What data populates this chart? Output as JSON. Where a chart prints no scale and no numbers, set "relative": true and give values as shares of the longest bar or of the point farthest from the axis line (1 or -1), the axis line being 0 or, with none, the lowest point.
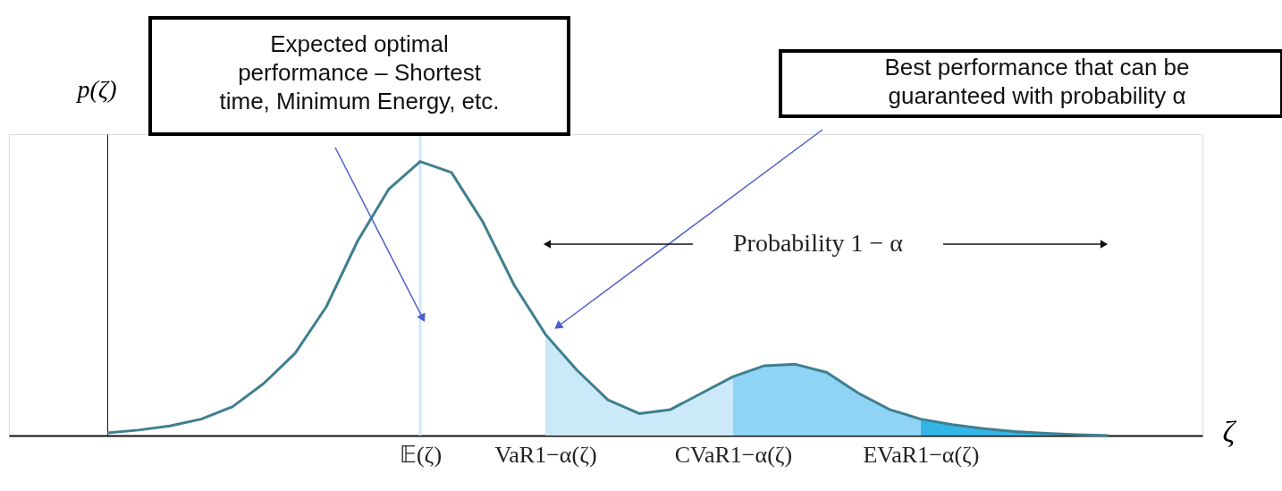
{
  "chart_data": {
    "type": "line",
    "relative": true,
    "ylabel": "p(ζ)",
    "xlabel": "ζ",
    "categories": [
      null,
      null,
      null,
      null,
      null,
      null,
      null,
      null,
      null,
      null,
      "𝔼(ζ)",
      null,
      null,
      null,
      "VaR1−α(ζ)",
      null,
      null,
      null,
      null,
      null,
      "CVaR1−α(ζ)",
      null,
      null,
      null,
      null,
      null,
      "EVaR1−α(ζ)",
      null,
      null,
      null,
      null,
      null,
      null
    ],
    "series": [
      {
        "type": "area",
        "color": "#cce9fa",
        "values": [
          null,
          null,
          null,
          null,
          null,
          null,
          null,
          null,
          null,
          null,
          null,
          null,
          null,
          null,
          0.37,
          0.24,
          0.13,
          0.08,
          0.095,
          0.155,
          0.215,
          null,
          null,
          null,
          null,
          null,
          null,
          null,
          null,
          null,
          null,
          null,
          null
        ]
      },
      {
        "type": "area",
        "color": "#8fd3f5",
        "values": [
          null,
          null,
          null,
          null,
          null,
          null,
          null,
          null,
          null,
          null,
          null,
          null,
          null,
          null,
          null,
          null,
          null,
          null,
          null,
          null,
          0.215,
          0.255,
          0.26,
          0.23,
          0.155,
          0.095,
          0.06,
          null,
          null,
          null,
          null,
          null,
          null
        ]
      },
      {
        "type": "area",
        "color": "#33b5e8",
        "values": [
          null,
          null,
          null,
          null,
          null,
          null,
          null,
          null,
          null,
          null,
          null,
          null,
          null,
          null,
          null,
          null,
          null,
          null,
          null,
          null,
          null,
          null,
          null,
          null,
          null,
          null,
          0.06,
          0.04,
          0.025,
          0.015,
          0.008,
          0.003,
          0.0
        ]
      },
      {
        "color": "#3f7f8f",
        "values": [
          0.01,
          0.02,
          0.035,
          0.06,
          0.105,
          0.19,
          0.3,
          0.47,
          0.71,
          0.9,
          1.0,
          0.96,
          0.78,
          0.55,
          0.37,
          0.24,
          0.13,
          0.08,
          0.095,
          0.155,
          0.215,
          0.255,
          0.26,
          0.23,
          0.155,
          0.095,
          0.06,
          0.04,
          0.025,
          0.015,
          0.008,
          0.003,
          0.0
        ]
      }
    ],
    "ref_lines": [
      {
        "axis": "x",
        "value": "𝔼(ζ)",
        "color": "#cfe8f8"
      }
    ],
    "annotations": [
      "Expected optimal\nperformance – Shortest\ntime, Minimum Energy, etc.",
      "Best performance that can be\nguaranteed with probability α",
      "Probability 1 − α"
    ],
    "grid": false,
    "marker": "none",
    "line_style": "solid"
  }
}
